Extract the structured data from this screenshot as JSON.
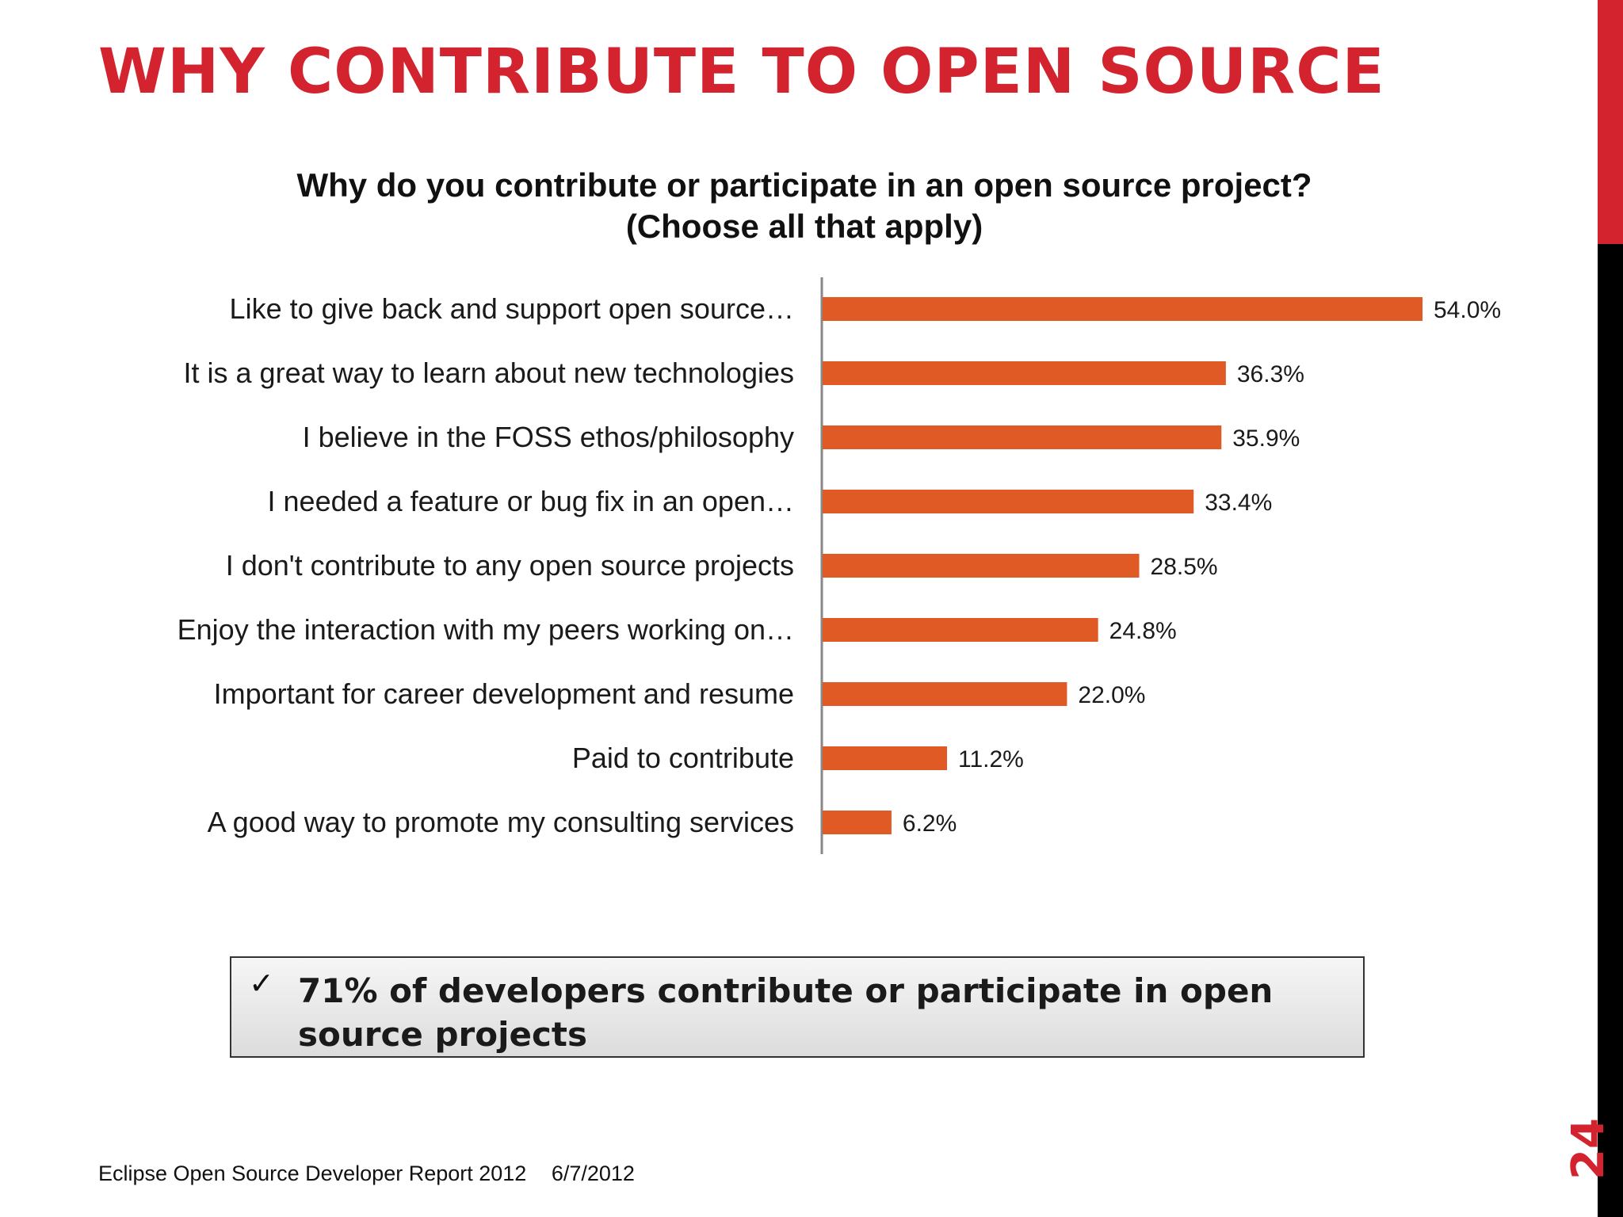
{
  "slide": {
    "title": "WHY CONTRIBUTE TO OPEN SOURCE",
    "footer_source": "Eclipse Open Source Developer Report 2012",
    "footer_date": "6/7/2012",
    "page_number": "24"
  },
  "callout": {
    "check_icon": "✓",
    "text": "71% of developers contribute or participate in open source projects"
  },
  "colors": {
    "accent": "#d2232e",
    "bar": "#e05a26",
    "sidebar_dark": "#000000"
  },
  "chart_data": {
    "type": "bar",
    "orientation": "horizontal",
    "title_lines": [
      "Why do you contribute or participate in an open source project?",
      "(Choose all that apply)"
    ],
    "categories": [
      "Like to give back and support open source…",
      "It is a great way to learn about new technologies",
      "I believe in the FOSS ethos/philosophy",
      "I needed a feature or bug fix in an open…",
      "I don't contribute to any open source projects",
      "Enjoy the interaction with my peers working on…",
      "Important for career development and resume",
      "Paid to contribute",
      "A good way to promote my consulting services"
    ],
    "values": [
      54.0,
      36.3,
      35.9,
      33.4,
      28.5,
      24.8,
      22.0,
      11.2,
      6.2
    ],
    "value_labels": [
      "54.0%",
      "36.3%",
      "35.9%",
      "33.4%",
      "28.5%",
      "24.8%",
      "22.0%",
      "11.2%",
      "6.2%"
    ],
    "xlim": [
      0,
      54
    ],
    "grid": false,
    "legend": "none"
  }
}
